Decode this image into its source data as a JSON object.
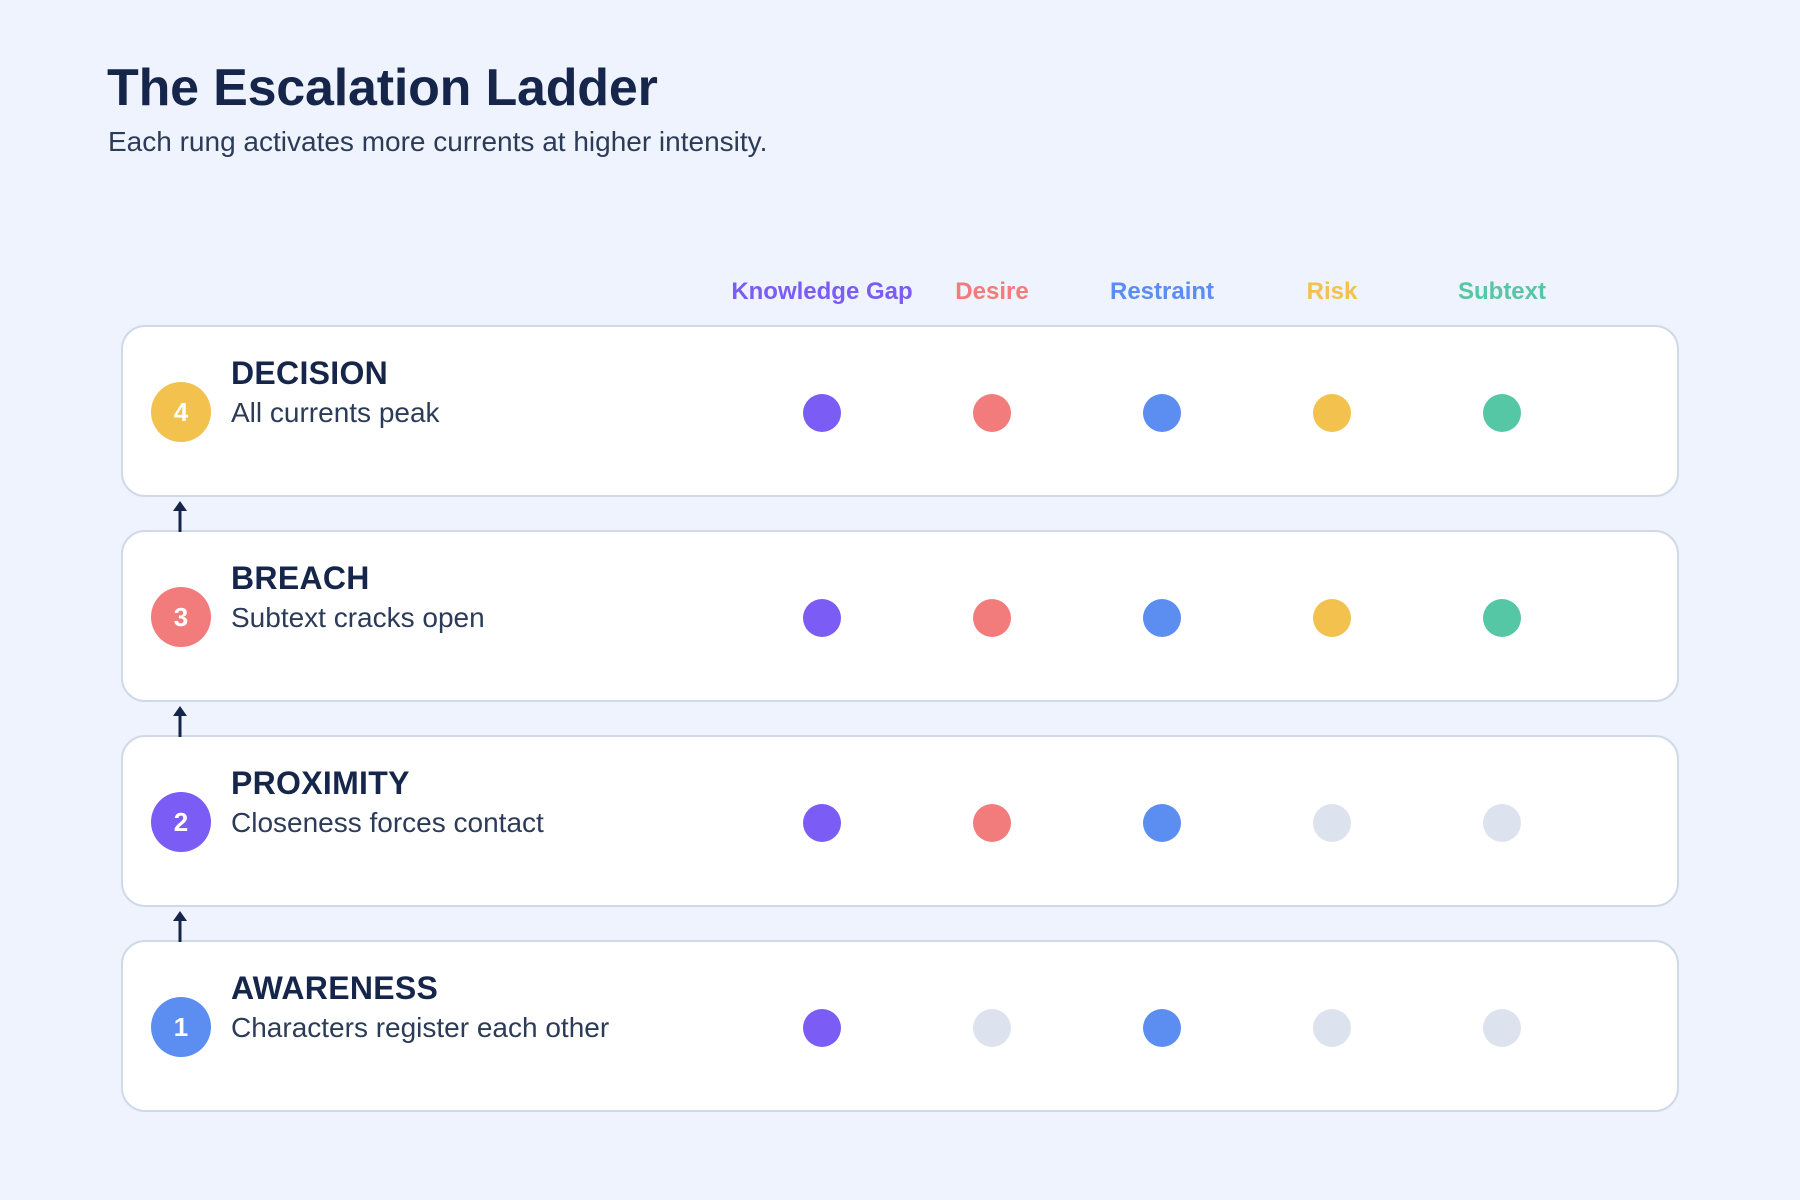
{
  "title": "The Escalation Ladder",
  "subtitle": "Each rung activates more currents at higher intensity.",
  "inactive_color": "#dde3ee",
  "currents": [
    {
      "label": "Knowledge Gap",
      "color": "#7b5cf5"
    },
    {
      "label": "Desire",
      "color": "#f27b7b"
    },
    {
      "label": "Restraint",
      "color": "#5b8ef0"
    },
    {
      "label": "Risk",
      "color": "#f2c14e"
    },
    {
      "label": "Subtext",
      "color": "#55c7a4"
    }
  ],
  "rungs": [
    {
      "number": "4",
      "name": "DECISION",
      "description": "All currents peak",
      "badge_color": "#f2c14e",
      "active": [
        true,
        true,
        true,
        true,
        true
      ]
    },
    {
      "number": "3",
      "name": "BREACH",
      "description": "Subtext cracks open",
      "badge_color": "#f27b7b",
      "active": [
        true,
        true,
        true,
        true,
        true
      ]
    },
    {
      "number": "2",
      "name": "PROXIMITY",
      "description": "Closeness forces contact",
      "badge_color": "#7b5cf5",
      "active": [
        true,
        true,
        true,
        false,
        false
      ]
    },
    {
      "number": "1",
      "name": "AWARENESS",
      "description": "Characters register each other",
      "badge_color": "#5b8ef0",
      "active": [
        true,
        false,
        true,
        false,
        false
      ]
    }
  ]
}
